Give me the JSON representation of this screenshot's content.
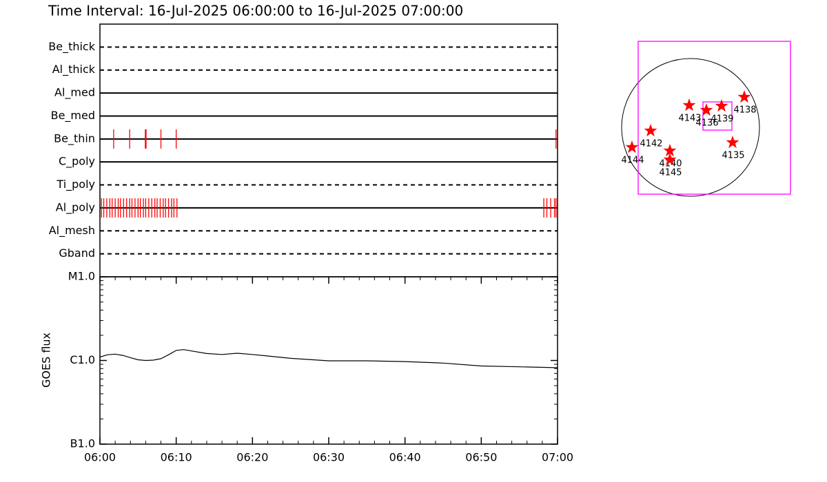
{
  "chart_data": [
    {
      "type": "timeline",
      "title": "Time Interval: 16-Jul-2025 06:00:00 to 16-Jul-2025 07:00:00",
      "categories": [
        "Be_thick",
        "Al_thick",
        "Al_med",
        "Be_med",
        "Be_thin",
        "C_poly",
        "Ti_poly",
        "Al_poly",
        "Al_mesh",
        "Gband"
      ],
      "line_styles": [
        "dashed",
        "dashed",
        "solid",
        "solid",
        "solid",
        "solid",
        "dashed",
        "solid",
        "dashed",
        "dashed"
      ],
      "events": [
        [],
        [],
        [],
        [],
        [
          1.8,
          3.9,
          5.95,
          6.05,
          8.0,
          10.0,
          59.8
        ],
        [],
        [],
        [
          0.2,
          0.5,
          0.9,
          1.3,
          1.6,
          2.0,
          2.4,
          2.7,
          3.1,
          3.5,
          3.9,
          4.2,
          4.6,
          5.0,
          5.3,
          5.7,
          6.0,
          6.4,
          6.8,
          7.2,
          7.5,
          7.9,
          8.3,
          8.6,
          9.0,
          9.4,
          9.7,
          10.1,
          58.2,
          58.6,
          59.1,
          59.6,
          59.8
        ],
        [],
        []
      ],
      "color": "#ff0000",
      "xlim": [
        0,
        60
      ]
    },
    {
      "type": "line",
      "ylabel": "GOES flux",
      "x": [
        0,
        1,
        2,
        3,
        4,
        5,
        6,
        7,
        8,
        9,
        10,
        11,
        12,
        14,
        16,
        18,
        20,
        25,
        30,
        35,
        40,
        45,
        50,
        55,
        60
      ],
      "values": [
        1.1e-06,
        1.17e-06,
        1.19e-06,
        1.15e-06,
        1.08e-06,
        1.02e-06,
        1e-06,
        1.01e-06,
        1.05e-06,
        1.17e-06,
        1.32e-06,
        1.35e-06,
        1.3e-06,
        1.21e-06,
        1.18e-06,
        1.22e-06,
        1.18e-06,
        1.06e-06,
        9.9e-07,
        9.9e-07,
        9.7e-07,
        9.3e-07,
        8.6e-07,
        8.4e-07,
        8.2e-07
      ],
      "color": "#000000",
      "ylog": true,
      "ylim": [
        1e-07,
        1e-05
      ],
      "yticks": [
        {
          "value": 1e-07,
          "label": "B1.0"
        },
        {
          "value": 1e-06,
          "label": "C1.0"
        },
        {
          "value": 1e-05,
          "label": "M1.0"
        }
      ],
      "xlim": [
        0,
        60
      ],
      "xticks": [
        {
          "value": 0,
          "label": "06:00"
        },
        {
          "value": 10,
          "label": "06:10"
        },
        {
          "value": 20,
          "label": "06:20"
        },
        {
          "value": 30,
          "label": "06:30"
        },
        {
          "value": 40,
          "label": "06:40"
        },
        {
          "value": 50,
          "label": "06:50"
        },
        {
          "value": 60,
          "label": "07:00"
        }
      ],
      "xminor": 5
    },
    {
      "type": "map",
      "labels": [
        "4143",
        "4136",
        "4139",
        "4138",
        "4142",
        "4144",
        "4140",
        "4145",
        "4135"
      ],
      "x": [
        -0.02,
        0.23,
        0.45,
        0.78,
        -0.58,
        -0.85,
        -0.3,
        -0.3,
        0.61
      ],
      "y": [
        0.32,
        0.25,
        0.31,
        0.44,
        -0.05,
        -0.29,
        -0.34,
        -0.47,
        -0.22
      ],
      "color": "#ff0000",
      "box_color": "#ff00ff",
      "fov": {
        "x": [
          -0.76,
          1.45
        ],
        "y": [
          -0.97,
          1.25
        ]
      },
      "subfov": {
        "x": [
          0.18,
          0.6
        ],
        "y": [
          -0.04,
          0.37
        ]
      }
    }
  ]
}
